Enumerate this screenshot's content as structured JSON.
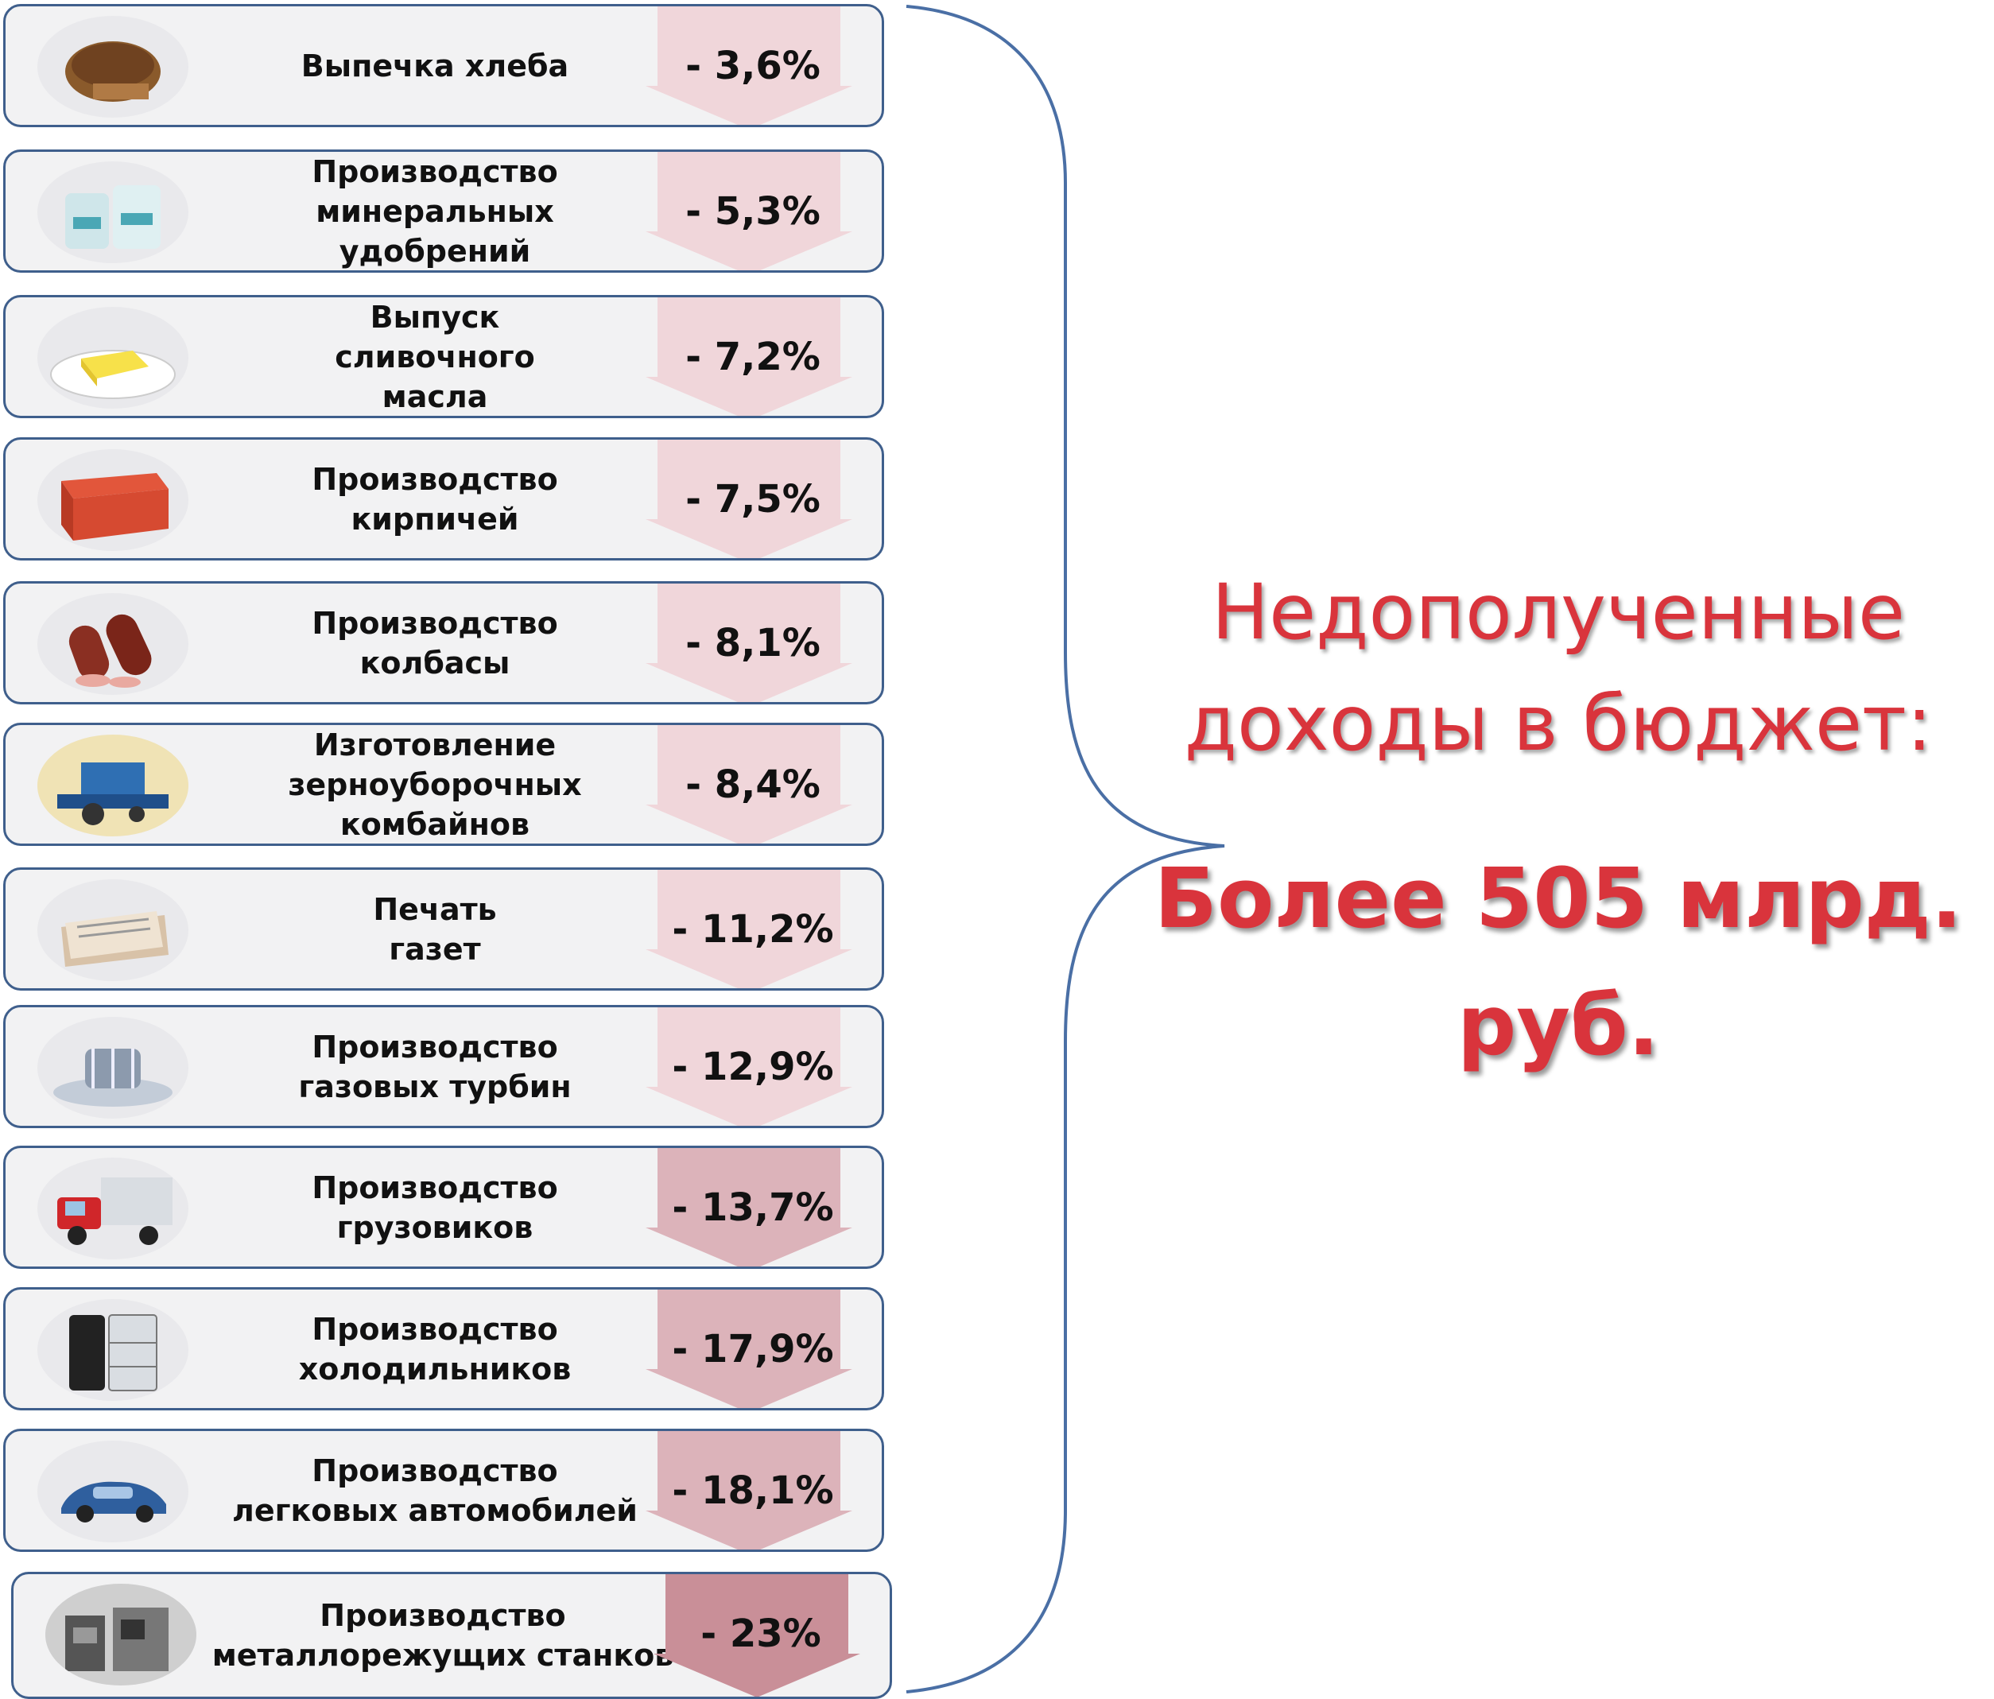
{
  "items": [
    {
      "label": "Выпечка хлеба",
      "value": "- 3,6%",
      "icon": "bread-icon"
    },
    {
      "label": "Производство\nминеральных\nудобрений",
      "value": "- 5,3%",
      "icon": "fertilizer-bags-icon"
    },
    {
      "label": "Выпуск\nсливочного\nмасла",
      "value": "- 7,2%",
      "icon": "butter-icon"
    },
    {
      "label": "Производство\nкирпичей",
      "value": "- 7,5%",
      "icon": "brick-icon"
    },
    {
      "label": "Производство\nколбасы",
      "value": "- 8,1%",
      "icon": "sausage-icon"
    },
    {
      "label": "Изготовление\nзерноуборочных\nкомбайнов",
      "value": "- 8,4%",
      "icon": "combine-harvester-icon"
    },
    {
      "label": "Печать\nгазет",
      "value": "- 11,2%",
      "icon": "newspaper-icon"
    },
    {
      "label": "Производство\nгазовых турбин",
      "value": "- 12,9%",
      "icon": "gas-turbine-icon"
    },
    {
      "label": "Производство\nгрузовиков",
      "value": "- 13,7%",
      "icon": "truck-icon"
    },
    {
      "label": "Производство\nхолодильников",
      "value": "- 17,9%",
      "icon": "refrigerator-icon"
    },
    {
      "label": "Производство\nлегковых автомобилей",
      "value": "- 18,1%",
      "icon": "car-icon"
    },
    {
      "label": "Производство\nметаллорежущих станков",
      "value": "- 23%",
      "icon": "machine-tools-icon"
    }
  ],
  "colors": {
    "heading": "#d9343c",
    "border": "#3f5f8c",
    "arrow_light": "#f0d6da",
    "arrow_mid": "#dcb3ba",
    "arrow_dark": "#c98f98"
  },
  "summary": {
    "heading": "Недополученные\nдоходы в бюджет:",
    "amount": "Более 505 млрд.\nруб."
  }
}
